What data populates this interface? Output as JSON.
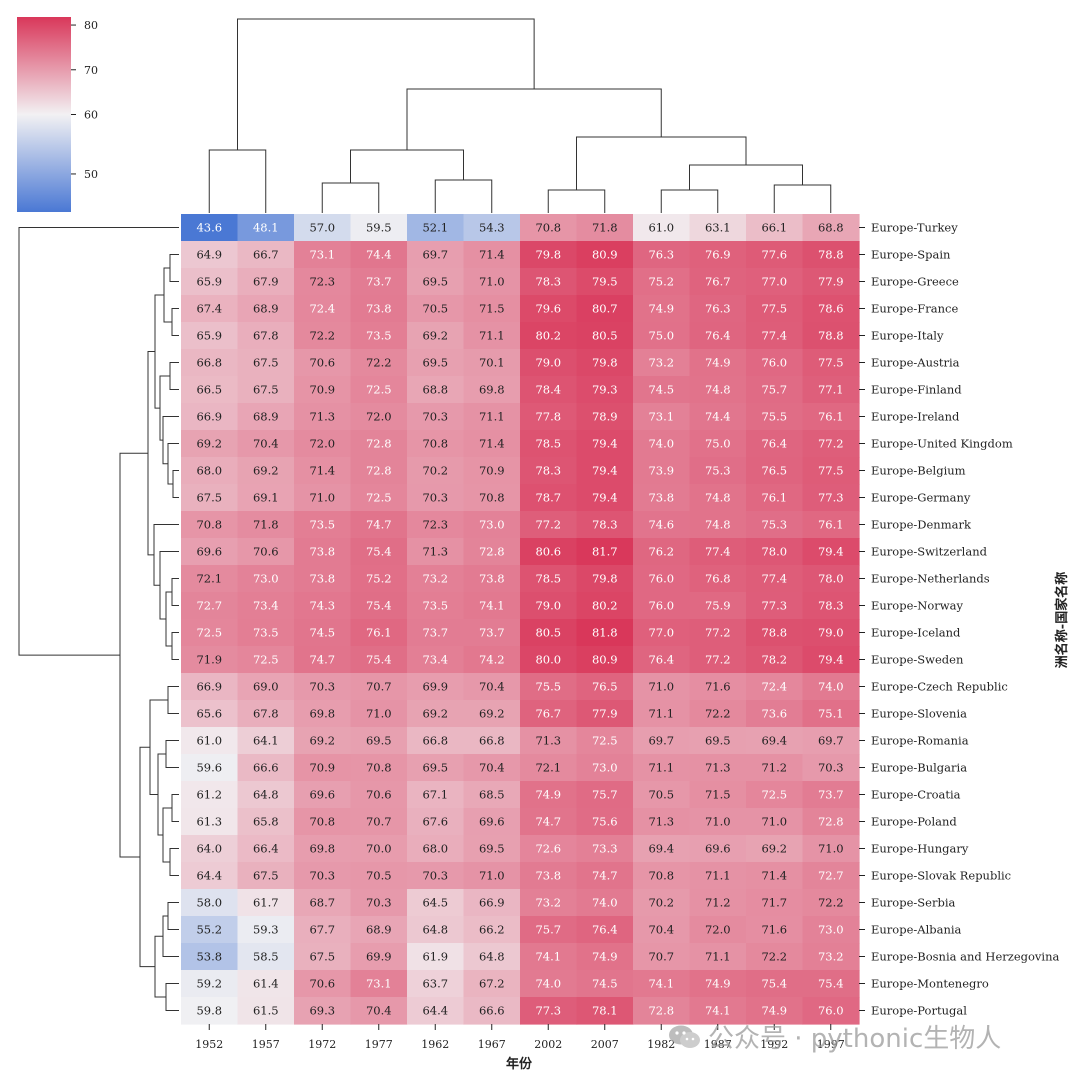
{
  "chart_data": {
    "type": "heatmap",
    "xlabel": "年份",
    "ylabel": "洲名称-国家名称",
    "columns": [
      "1952",
      "1957",
      "1972",
      "1977",
      "1962",
      "1967",
      "2002",
      "2007",
      "1982",
      "1987",
      "1992",
      "1997"
    ],
    "rows": [
      "Europe-Turkey",
      "Europe-Spain",
      "Europe-Greece",
      "Europe-France",
      "Europe-Italy",
      "Europe-Austria",
      "Europe-Finland",
      "Europe-Ireland",
      "Europe-United Kingdom",
      "Europe-Belgium",
      "Europe-Germany",
      "Europe-Denmark",
      "Europe-Switzerland",
      "Europe-Netherlands",
      "Europe-Norway",
      "Europe-Iceland",
      "Europe-Sweden",
      "Europe-Czech Republic",
      "Europe-Slovenia",
      "Europe-Romania",
      "Europe-Bulgaria",
      "Europe-Croatia",
      "Europe-Poland",
      "Europe-Hungary",
      "Europe-Slovak Republic",
      "Europe-Serbia",
      "Europe-Albania",
      "Europe-Bosnia and Herzegovina",
      "Europe-Montenegro",
      "Europe-Portugal"
    ],
    "values": [
      [
        43.6,
        48.1,
        57.0,
        59.5,
        52.1,
        54.3,
        70.8,
        71.8,
        61.0,
        63.1,
        66.1,
        68.8
      ],
      [
        64.9,
        66.7,
        73.1,
        74.4,
        69.7,
        71.4,
        79.8,
        80.9,
        76.3,
        76.9,
        77.6,
        78.8
      ],
      [
        65.9,
        67.9,
        72.3,
        73.7,
        69.5,
        71.0,
        78.3,
        79.5,
        75.2,
        76.7,
        77.0,
        77.9
      ],
      [
        67.4,
        68.9,
        72.4,
        73.8,
        70.5,
        71.5,
        79.6,
        80.7,
        74.9,
        76.3,
        77.5,
        78.6
      ],
      [
        65.9,
        67.8,
        72.2,
        73.5,
        69.2,
        71.1,
        80.2,
        80.5,
        75.0,
        76.4,
        77.4,
        78.8
      ],
      [
        66.8,
        67.5,
        70.6,
        72.2,
        69.5,
        70.1,
        79.0,
        79.8,
        73.2,
        74.9,
        76.0,
        77.5
      ],
      [
        66.5,
        67.5,
        70.9,
        72.5,
        68.8,
        69.8,
        78.4,
        79.3,
        74.5,
        74.8,
        75.7,
        77.1
      ],
      [
        66.9,
        68.9,
        71.3,
        72.0,
        70.3,
        71.1,
        77.8,
        78.9,
        73.1,
        74.4,
        75.5,
        76.1
      ],
      [
        69.2,
        70.4,
        72.0,
        72.8,
        70.8,
        71.4,
        78.5,
        79.4,
        74.0,
        75.0,
        76.4,
        77.2
      ],
      [
        68.0,
        69.2,
        71.4,
        72.8,
        70.2,
        70.9,
        78.3,
        79.4,
        73.9,
        75.3,
        76.5,
        77.5
      ],
      [
        67.5,
        69.1,
        71.0,
        72.5,
        70.3,
        70.8,
        78.7,
        79.4,
        73.8,
        74.8,
        76.1,
        77.3
      ],
      [
        70.8,
        71.8,
        73.5,
        74.7,
        72.3,
        73.0,
        77.2,
        78.3,
        74.6,
        74.8,
        75.3,
        76.1
      ],
      [
        69.6,
        70.6,
        73.8,
        75.4,
        71.3,
        72.8,
        80.6,
        81.7,
        76.2,
        77.4,
        78.0,
        79.4
      ],
      [
        72.1,
        73.0,
        73.8,
        75.2,
        73.2,
        73.8,
        78.5,
        79.8,
        76.0,
        76.8,
        77.4,
        78.0
      ],
      [
        72.7,
        73.4,
        74.3,
        75.4,
        73.5,
        74.1,
        79.0,
        80.2,
        76.0,
        75.9,
        77.3,
        78.3
      ],
      [
        72.5,
        73.5,
        74.5,
        76.1,
        73.7,
        73.7,
        80.5,
        81.8,
        77.0,
        77.2,
        78.8,
        79.0
      ],
      [
        71.9,
        72.5,
        74.7,
        75.4,
        73.4,
        74.2,
        80.0,
        80.9,
        76.4,
        77.2,
        78.2,
        79.4
      ],
      [
        66.9,
        69.0,
        70.3,
        70.7,
        69.9,
        70.4,
        75.5,
        76.5,
        71.0,
        71.6,
        72.4,
        74.0
      ],
      [
        65.6,
        67.8,
        69.8,
        71.0,
        69.2,
        69.2,
        76.7,
        77.9,
        71.1,
        72.2,
        73.6,
        75.1
      ],
      [
        61.0,
        64.1,
        69.2,
        69.5,
        66.8,
        66.8,
        71.3,
        72.5,
        69.7,
        69.5,
        69.4,
        69.7
      ],
      [
        59.6,
        66.6,
        70.9,
        70.8,
        69.5,
        70.4,
        72.1,
        73.0,
        71.1,
        71.3,
        71.2,
        70.3
      ],
      [
        61.2,
        64.8,
        69.6,
        70.6,
        67.1,
        68.5,
        74.9,
        75.7,
        70.5,
        71.5,
        72.5,
        73.7
      ],
      [
        61.3,
        65.8,
        70.8,
        70.7,
        67.6,
        69.6,
        74.7,
        75.6,
        71.3,
        71.0,
        71.0,
        72.8
      ],
      [
        64.0,
        66.4,
        69.8,
        70.0,
        68.0,
        69.5,
        72.6,
        73.3,
        69.4,
        69.6,
        69.2,
        71.0
      ],
      [
        64.4,
        67.5,
        70.3,
        70.5,
        70.3,
        71.0,
        73.8,
        74.7,
        70.8,
        71.1,
        71.4,
        72.7
      ],
      [
        58.0,
        61.7,
        68.7,
        70.3,
        64.5,
        66.9,
        73.2,
        74.0,
        70.2,
        71.2,
        71.7,
        72.2
      ],
      [
        55.2,
        59.3,
        67.7,
        68.9,
        64.8,
        66.2,
        75.7,
        76.4,
        70.4,
        72.0,
        71.6,
        73.0
      ],
      [
        53.8,
        58.5,
        67.5,
        69.9,
        61.9,
        64.8,
        74.1,
        74.9,
        70.7,
        71.1,
        72.2,
        73.2
      ],
      [
        59.2,
        61.4,
        70.6,
        73.1,
        63.7,
        67.2,
        74.0,
        74.5,
        74.1,
        74.9,
        75.4,
        75.4
      ],
      [
        59.8,
        61.5,
        69.3,
        70.4,
        64.4,
        66.6,
        77.3,
        78.1,
        72.8,
        74.1,
        74.9,
        76.0
      ]
    ],
    "colorbar": {
      "ticks": [
        50,
        60,
        70,
        80
      ],
      "vmin": 43.6,
      "vmax": 81.8
    },
    "colors": {
      "low": "#4a78d4",
      "mid": "#f2f1f3",
      "high": "#d9375a"
    },
    "col_dendrogram": "present",
    "row_dendrogram": "present"
  },
  "watermark": {
    "text": "公众号 · pythonic生物人",
    "icon": "wechat-icon"
  }
}
